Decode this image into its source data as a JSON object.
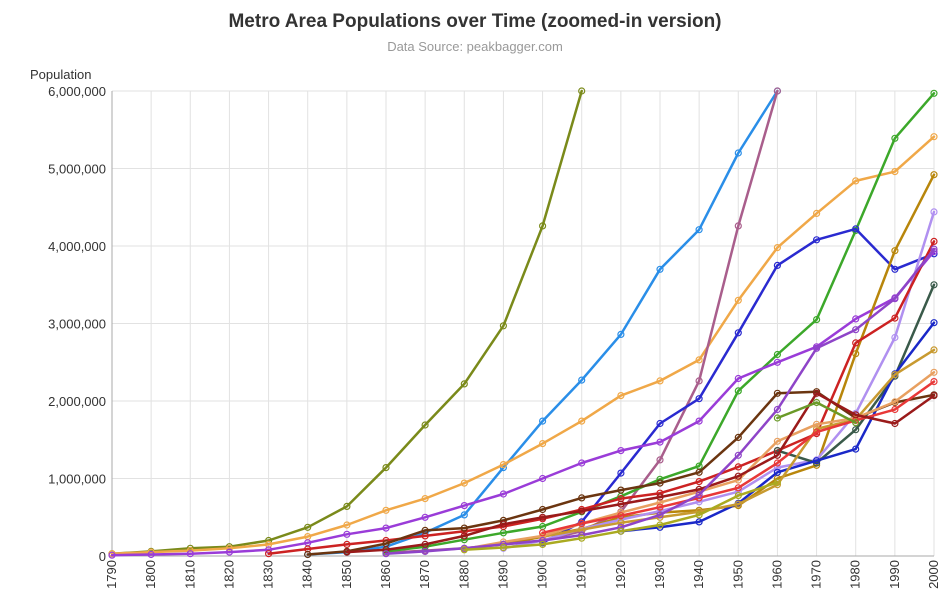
{
  "chart_data": {
    "type": "line",
    "title": "Metro Area Populations over Time (zoomed-in version)",
    "subtitle": "Data Source: peakbagger.com",
    "xlabel": "",
    "ylabel": "Population",
    "ylim": [
      0,
      6000000
    ],
    "xlim": [
      1790,
      2000
    ],
    "y_ticks": [
      0,
      1000000,
      2000000,
      3000000,
      4000000,
      5000000,
      6000000
    ],
    "y_tick_labels": [
      "0",
      "1,000,000",
      "2,000,000",
      "3,000,000",
      "4,000,000",
      "5,000,000",
      "6,000,000"
    ],
    "x_ticks": [
      1790,
      1800,
      1810,
      1820,
      1830,
      1840,
      1850,
      1860,
      1870,
      1880,
      1890,
      1900,
      1910,
      1920,
      1930,
      1940,
      1950,
      1960,
      1970,
      1980,
      1990,
      2000
    ],
    "grid": true,
    "legend": "none",
    "series": [
      {
        "color": "#7a8a1a",
        "x": [
          1790,
          1800,
          1810,
          1820,
          1830,
          1840,
          1850,
          1860,
          1870,
          1880,
          1890,
          1900,
          1910
        ],
        "y": [
          30000,
          60000,
          100000,
          120000,
          200000,
          370000,
          640000,
          1140000,
          1690000,
          2220000,
          2970000,
          4260000,
          6000000
        ]
      },
      {
        "color": "#2a8ee8",
        "x": [
          1840,
          1850,
          1860,
          1870,
          1880,
          1890,
          1900,
          1910,
          1920,
          1930,
          1940,
          1950,
          1960
        ],
        "y": [
          20000,
          50000,
          120000,
          300000,
          530000,
          1140000,
          1740000,
          2270000,
          2860000,
          3700000,
          4210000,
          5200000,
          6000000
        ]
      },
      {
        "color": "#f0a848",
        "x": [
          1790,
          1800,
          1810,
          1820,
          1830,
          1840,
          1850,
          1860,
          1870,
          1880,
          1890,
          1900,
          1910,
          1920,
          1930,
          1940,
          1950,
          1960,
          1970,
          1980,
          1990,
          2000
        ],
        "y": [
          30000,
          50000,
          70000,
          100000,
          150000,
          250000,
          400000,
          590000,
          740000,
          940000,
          1180000,
          1450000,
          1740000,
          2070000,
          2260000,
          2530000,
          3300000,
          3980000,
          4420000,
          4840000,
          4960000,
          5410000
        ]
      },
      {
        "color": "#a95e8c",
        "x": [
          1860,
          1870,
          1880,
          1890,
          1900,
          1910,
          1920,
          1930,
          1940,
          1950,
          1960
        ],
        "y": [
          40000,
          70000,
          100000,
          150000,
          200000,
          320000,
          570000,
          1240000,
          2260000,
          4260000,
          6000000
        ]
      },
      {
        "color": "#3ca82a",
        "x": [
          1860,
          1870,
          1880,
          1890,
          1900,
          1910,
          1920,
          1930,
          1940,
          1950,
          1960,
          1970,
          1980,
          1990,
          2000
        ],
        "y": [
          60000,
          120000,
          210000,
          300000,
          380000,
          570000,
          770000,
          990000,
          1160000,
          2130000,
          2600000,
          3050000,
          4200000,
          5390000,
          5970000
        ]
      },
      {
        "color": "#2a2ad0",
        "x": [
          1900,
          1910,
          1920,
          1930,
          1940,
          1950,
          1960,
          1970,
          1980,
          1990,
          2000
        ],
        "y": [
          170000,
          440000,
          1070000,
          1710000,
          2030000,
          2880000,
          3750000,
          4080000,
          4220000,
          3700000,
          3900000
        ]
      },
      {
        "color": "#9a3cd8",
        "x": [
          1790,
          1800,
          1810,
          1820,
          1830,
          1840,
          1850,
          1860,
          1870,
          1880,
          1890,
          1900,
          1910,
          1920,
          1930,
          1940,
          1950,
          1960,
          1970,
          1980,
          1990,
          2000
        ],
        "y": [
          10000,
          20000,
          30000,
          50000,
          80000,
          170000,
          280000,
          360000,
          500000,
          650000,
          800000,
          1000000,
          1200000,
          1360000,
          1470000,
          1740000,
          2290000,
          2500000,
          2700000,
          3060000,
          3330000,
          3930000
        ]
      },
      {
        "color": "#b8860b",
        "x": [
          1890,
          1900,
          1910,
          1920,
          1930,
          1940,
          1950,
          1960,
          1970,
          1980,
          1990,
          2000
        ],
        "y": [
          150000,
          250000,
          350000,
          500000,
          560000,
          590000,
          650000,
          1000000,
          1170000,
          2610000,
          3940000,
          4920000
        ]
      },
      {
        "color": "#b090f0",
        "x": [
          1890,
          1900,
          1910,
          1920,
          1930,
          1940,
          1950,
          1960,
          1970,
          1980,
          1990,
          2000
        ],
        "y": [
          100000,
          200000,
          350000,
          470000,
          580000,
          700000,
          830000,
          1140000,
          1240000,
          1840000,
          2820000,
          4440000
        ]
      },
      {
        "color": "#cc2222",
        "x": [
          1830,
          1840,
          1850,
          1860,
          1870,
          1880,
          1890,
          1900,
          1910,
          1920,
          1930,
          1940,
          1950,
          1960,
          1970,
          1980,
          1990,
          2000
        ],
        "y": [
          30000,
          90000,
          150000,
          200000,
          260000,
          320000,
          380000,
          480000,
          600000,
          740000,
          810000,
          960000,
          1150000,
          1360000,
          1580000,
          2750000,
          3070000,
          4060000
        ]
      },
      {
        "color": "#3a5a4a",
        "x": [
          1960,
          1970,
          1980,
          1990,
          2000
        ],
        "y": [
          1360000,
          1200000,
          1630000,
          2320000,
          3500000
        ]
      },
      {
        "color": "#1a28c8",
        "x": [
          1920,
          1930,
          1940,
          1950,
          1960,
          1970,
          1980,
          1990,
          2000
        ],
        "y": [
          320000,
          370000,
          440000,
          680000,
          1080000,
          1230000,
          1380000,
          2350000,
          3010000
        ]
      },
      {
        "color": "#6b3510",
        "x": [
          1840,
          1850,
          1860,
          1870,
          1880,
          1890,
          1900,
          1910,
          1920,
          1930,
          1940,
          1950,
          1960,
          1970,
          1980,
          1990,
          2000
        ],
        "y": [
          20000,
          60000,
          160000,
          330000,
          360000,
          460000,
          600000,
          750000,
          850000,
          940000,
          1080000,
          1530000,
          2100000,
          2120000,
          1780000,
          1980000,
          2080000
        ]
      },
      {
        "color": "#c89a30",
        "x": [
          1900,
          1910,
          1920,
          1930,
          1940,
          1950,
          1960,
          1970,
          1980,
          1990,
          2000
        ],
        "y": [
          250000,
          340000,
          430000,
          500000,
          570000,
          670000,
          920000,
          1640000,
          1760000,
          2340000,
          2660000
        ]
      },
      {
        "color": "#e8a060",
        "x": [
          1880,
          1890,
          1900,
          1910,
          1920,
          1930,
          1940,
          1950,
          1960,
          1970,
          1980,
          1990,
          2000
        ],
        "y": [
          90000,
          180000,
          260000,
          420000,
          560000,
          690000,
          830000,
          980000,
          1480000,
          1700000,
          1780000,
          1990000,
          2370000
        ]
      },
      {
        "color": "#e83838",
        "x": [
          1900,
          1910,
          1920,
          1930,
          1940,
          1950,
          1960,
          1970,
          1980,
          1990,
          2000
        ],
        "y": [
          300000,
          420000,
          520000,
          630000,
          750000,
          880000,
          1200000,
          1600000,
          1750000,
          1890000,
          2250000
        ]
      },
      {
        "color": "#9a1a1a",
        "x": [
          1850,
          1860,
          1870,
          1880,
          1890,
          1900,
          1910,
          1920,
          1930,
          1940,
          1950,
          1960,
          1970,
          1980,
          1990,
          2000
        ],
        "y": [
          50000,
          80000,
          150000,
          260000,
          410000,
          500000,
          580000,
          670000,
          760000,
          860000,
          1030000,
          1300000,
          2100000,
          1820000,
          1710000,
          2070000
        ]
      },
      {
        "color": "#8e44c8",
        "x": [
          1860,
          1870,
          1880,
          1890,
          1900,
          1910,
          1920,
          1930,
          1940,
          1950,
          1960,
          1970,
          1980,
          1990,
          2000
        ],
        "y": [
          30000,
          60000,
          100000,
          150000,
          200000,
          270000,
          370000,
          530000,
          790000,
          1300000,
          1890000,
          2680000,
          2920000,
          3320000,
          3960000
        ]
      },
      {
        "color": "#6a9a28",
        "x": [
          1960,
          1970,
          1980
        ],
        "y": [
          1780000,
          1980000,
          1720000
        ]
      },
      {
        "color": "#aaaa20",
        "x": [
          1880,
          1890,
          1900,
          1910,
          1920,
          1930,
          1940,
          1950,
          1960
        ],
        "y": [
          80000,
          110000,
          150000,
          230000,
          320000,
          400000,
          530000,
          780000,
          950000
        ]
      }
    ]
  }
}
